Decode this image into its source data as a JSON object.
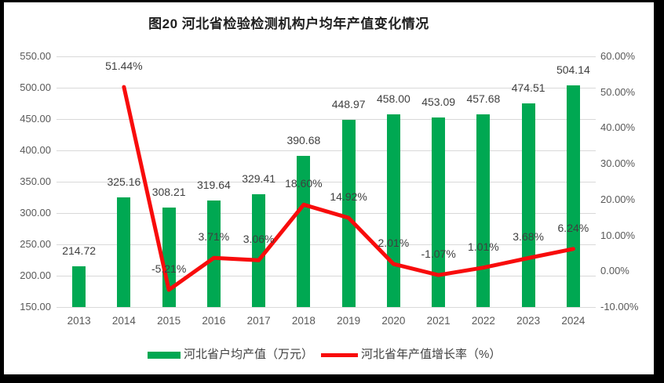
{
  "title": "图20  河北省检验检测机构户均年产值变化情况",
  "chart_data": {
    "type": "bar",
    "subtype": "bar+line combo, dual axis",
    "title": "图20  河北省检验检测机构户均年产值变化情况",
    "categories": [
      "2013",
      "2014",
      "2015",
      "2016",
      "2017",
      "2018",
      "2019",
      "2020",
      "2021",
      "2022",
      "2023",
      "2024"
    ],
    "series": [
      {
        "name": "河北省户均产值（万元）",
        "type": "bar",
        "axis": "left",
        "color": "#00a852",
        "values": [
          214.72,
          325.16,
          308.21,
          319.64,
          329.41,
          390.68,
          448.97,
          458.0,
          453.09,
          457.68,
          474.51,
          504.14
        ],
        "data_labels": [
          "214.72",
          "325.16",
          "308.21",
          "319.64",
          "329.41",
          "390.68",
          "448.97",
          "458.00",
          "453.09",
          "457.68",
          "474.51",
          "504.14"
        ]
      },
      {
        "name": "河北省年产值增长率（%）",
        "type": "line",
        "axis": "right",
        "color": "#f80c0c",
        "values": [
          null,
          51.44,
          -5.21,
          3.71,
          3.06,
          18.6,
          14.92,
          2.01,
          -1.07,
          1.01,
          3.68,
          6.24
        ],
        "data_labels": [
          null,
          "51.44%",
          "-5.21%",
          "3.71%",
          "3.06%",
          "18.60%",
          "14.92%",
          "2.01%",
          "-1.07%",
          "1.01%",
          "3.68%",
          "6.24%"
        ]
      }
    ],
    "left_axis": {
      "min": 150,
      "max": 550,
      "step": 50,
      "tick_labels": [
        "150.00",
        "200.00",
        "250.00",
        "300.00",
        "350.00",
        "400.00",
        "450.00",
        "500.00",
        "550.00"
      ]
    },
    "right_axis": {
      "min": -10,
      "max": 60,
      "step": 10,
      "tick_labels": [
        "-10.00%",
        "0.00%",
        "10.00%",
        "20.00%",
        "30.00%",
        "40.00%",
        "50.00%",
        "60.00%"
      ]
    },
    "grid": true,
    "legend_position": "bottom"
  },
  "legend": {
    "items": [
      {
        "label": "河北省户均产值（万元）",
        "color": "#00a852",
        "shape": "rect"
      },
      {
        "label": "河北省年产值增长率（%）",
        "color": "#f80c0c",
        "shape": "line"
      }
    ]
  },
  "colors": {
    "bar_green": "#00a852",
    "line_red": "#f80c0c",
    "gridline": "#d9d9d9",
    "axis_text": "#595959",
    "data_label_text": "#3f3f3f",
    "background": "#ffffff",
    "frame": "#000000"
  }
}
